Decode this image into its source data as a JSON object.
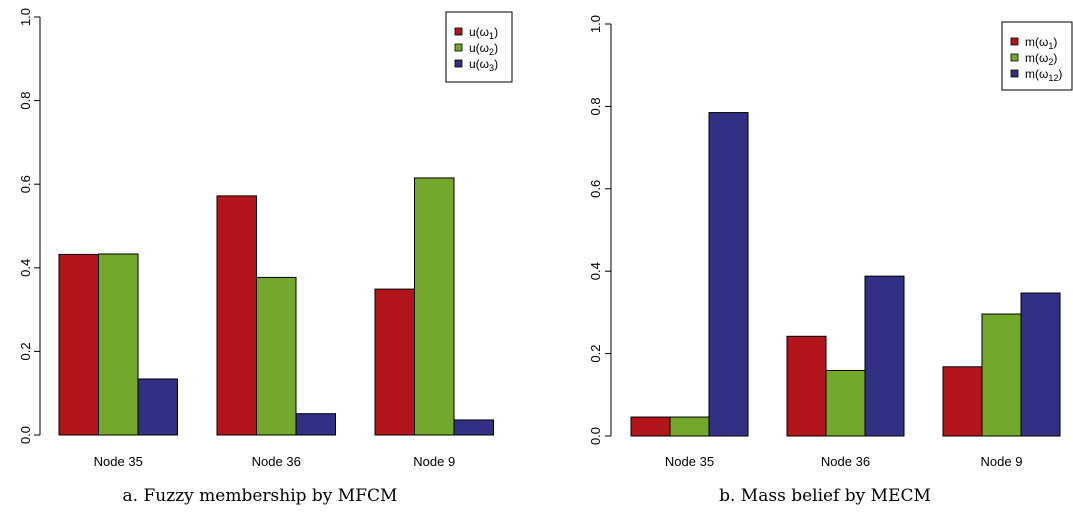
{
  "colors": {
    "series1": "#b2161b",
    "series2": "#73a82d",
    "series3": "#323085"
  },
  "chart_data": [
    {
      "type": "bar",
      "caption": "a.  Fuzzy membership by MFCM",
      "categories": [
        "Node 35",
        "Node 36",
        "Node 9"
      ],
      "series": [
        {
          "name": "u(ω₁)",
          "base": "u(ω",
          "sub": "1",
          "values": [
            0.432,
            0.572,
            0.349
          ]
        },
        {
          "name": "u(ω₂)",
          "base": "u(ω",
          "sub": "2",
          "values": [
            0.433,
            0.377,
            0.615
          ]
        },
        {
          "name": "u(ω₃)",
          "base": "u(ω",
          "sub": "3",
          "values": [
            0.134,
            0.051,
            0.036
          ]
        }
      ],
      "ylim": [
        0,
        1
      ],
      "yticks": [
        "0.0",
        "0.2",
        "0.4",
        "0.6",
        "0.8",
        "1.0"
      ],
      "legend_position": "top-right",
      "grid": false
    },
    {
      "type": "bar",
      "caption": "b.  Mass belief by MECM",
      "categories": [
        "Node 35",
        "Node 36",
        "Node 9"
      ],
      "series": [
        {
          "name": "m(ω₁)",
          "base": "m(ω",
          "sub": "1",
          "values": [
            0.046,
            0.242,
            0.168
          ]
        },
        {
          "name": "m(ω₂)",
          "base": "m(ω",
          "sub": "2",
          "values": [
            0.046,
            0.159,
            0.296
          ]
        },
        {
          "name": "m(ω₁₂)",
          "base": "m(ω",
          "sub": "12",
          "values": [
            0.785,
            0.388,
            0.347
          ]
        }
      ],
      "ylim": [
        0,
        1
      ],
      "yticks": [
        "0.0",
        "0.2",
        "0.4",
        "0.6",
        "0.8",
        "1.0"
      ],
      "legend_position": "top-right",
      "grid": false
    }
  ]
}
